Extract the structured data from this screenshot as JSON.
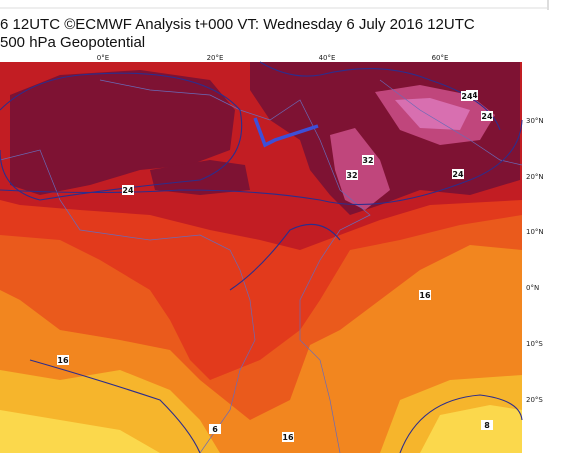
{
  "header": {
    "title": "6 12UTC ©ECMWF Analysis t+000 VT: Wednesday 6 July 2016 12UTC",
    "subtitle": "500 hPa Geopotential"
  },
  "map": {
    "lon_labels": [
      "0°E",
      "20°E",
      "40°E",
      "60°E"
    ],
    "lat_labels": [
      "30°N",
      "20°N",
      "10°N",
      "0°N",
      "10°S",
      "20°S"
    ],
    "contour_labels": [
      "24",
      "24",
      "24",
      "32",
      "32",
      "24",
      "24",
      "16",
      "16",
      "8",
      "6",
      "16"
    ]
  }
}
